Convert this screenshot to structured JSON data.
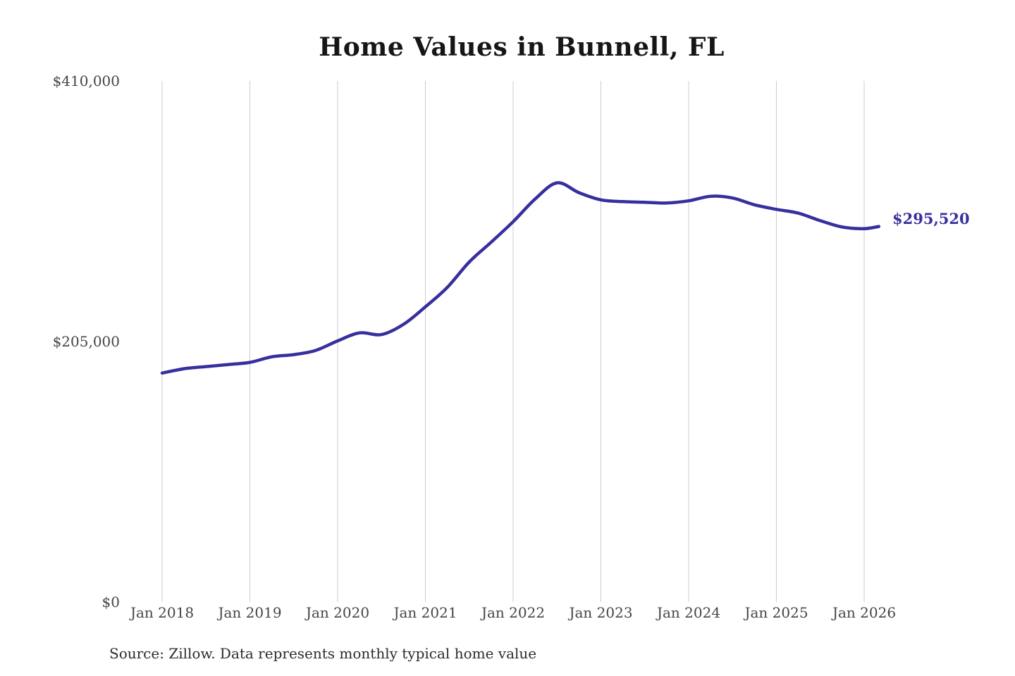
{
  "title": "Home Values in Bunnell, FL",
  "end_label": "$295,520",
  "source_note": "Source: Zillow. Data represents monthly typical home value",
  "colors": {
    "line": "#362f9e",
    "grid": "#cccccc",
    "axis_text": "#454545",
    "title_text": "#161616",
    "background": "#ffffff"
  },
  "chart_data": {
    "type": "line",
    "title": "Home Values in Bunnell, FL",
    "xlabel": "",
    "ylabel": "",
    "ylim": [
      0,
      410000
    ],
    "grid": "vertical-only",
    "legend": "none",
    "x_tick_labels": [
      "Jan 2018",
      "Jan 2019",
      "Jan 2020",
      "Jan 2021",
      "Jan 2022",
      "Jan 2023",
      "Jan 2024",
      "Jan 2025",
      "Jan 2026"
    ],
    "y_ticks": [
      {
        "label": "$0",
        "value": 0
      },
      {
        "label": "$205,000",
        "value": 205000
      },
      {
        "label": "$410,000",
        "value": 410000
      }
    ],
    "final_value": 295520,
    "final_value_label": "$295,520",
    "series": [
      {
        "name": "Monthly typical home value",
        "points": [
          {
            "date": "2018-01",
            "value": 180200
          },
          {
            "date": "2018-04",
            "value": 183600
          },
          {
            "date": "2018-07",
            "value": 185300
          },
          {
            "date": "2018-10",
            "value": 186900
          },
          {
            "date": "2019-01",
            "value": 188600
          },
          {
            "date": "2019-04",
            "value": 193000
          },
          {
            "date": "2019-07",
            "value": 194700
          },
          {
            "date": "2019-10",
            "value": 198000
          },
          {
            "date": "2020-01",
            "value": 205500
          },
          {
            "date": "2020-04",
            "value": 211800
          },
          {
            "date": "2020-07",
            "value": 210500
          },
          {
            "date": "2020-10",
            "value": 218500
          },
          {
            "date": "2021-01",
            "value": 232300
          },
          {
            "date": "2021-04",
            "value": 247600
          },
          {
            "date": "2021-07",
            "value": 267600
          },
          {
            "date": "2021-10",
            "value": 283200
          },
          {
            "date": "2022-01",
            "value": 299300
          },
          {
            "date": "2022-04",
            "value": 317100
          },
          {
            "date": "2022-07",
            "value": 329900
          },
          {
            "date": "2022-10",
            "value": 322100
          },
          {
            "date": "2023-01",
            "value": 316500
          },
          {
            "date": "2023-04",
            "value": 315100
          },
          {
            "date": "2023-07",
            "value": 314600
          },
          {
            "date": "2023-10",
            "value": 314000
          },
          {
            "date": "2024-01",
            "value": 315700
          },
          {
            "date": "2024-04",
            "value": 319300
          },
          {
            "date": "2024-07",
            "value": 317900
          },
          {
            "date": "2024-10",
            "value": 312600
          },
          {
            "date": "2025-01",
            "value": 309000
          },
          {
            "date": "2025-04",
            "value": 306000
          },
          {
            "date": "2025-07",
            "value": 300100
          },
          {
            "date": "2025-10",
            "value": 295100
          },
          {
            "date": "2026-01",
            "value": 293800
          },
          {
            "date": "2026-03",
            "value": 295520
          }
        ]
      }
    ]
  }
}
